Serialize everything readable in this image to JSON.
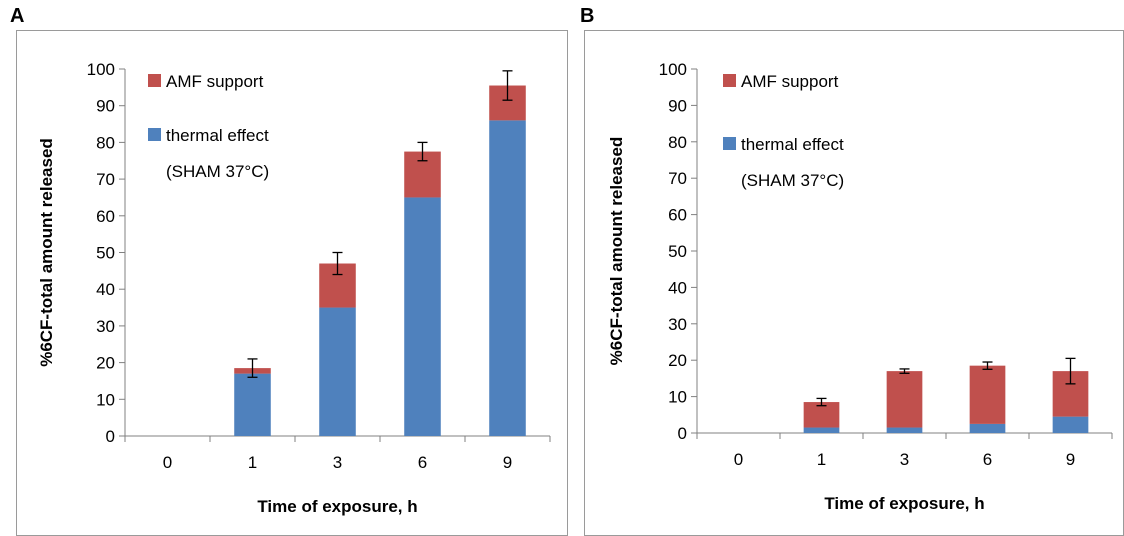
{
  "chart_data": [
    {
      "panel_label": "A",
      "type": "bar",
      "stacked": true,
      "categories": [
        "0",
        "1",
        "3",
        "6",
        "9"
      ],
      "series": [
        {
          "name": "thermal effect (SHAM 37°C)",
          "color": "#4f81bd",
          "values": [
            0,
            17,
            35,
            65,
            86
          ]
        },
        {
          "name": "AMF support",
          "color": "#c0504d",
          "values": [
            0,
            1.5,
            12,
            12.5,
            9.5
          ]
        }
      ],
      "error_bars": [
        null,
        2.5,
        3,
        2.5,
        4
      ],
      "xlabel": "Time of exposure, h",
      "ylabel": "%6CF-total amount  released",
      "ylim": [
        0,
        100
      ],
      "yticks": [
        0,
        10,
        20,
        30,
        40,
        50,
        60,
        70,
        80,
        90,
        100
      ],
      "legend_placement": "top-left",
      "grid": false,
      "legend": {
        "amf_label": "AMF support",
        "thermal_label_line1": "thermal effect",
        "thermal_label_line2": "(SHAM 37°C)"
      }
    },
    {
      "panel_label": "B",
      "type": "bar",
      "stacked": true,
      "categories": [
        "0",
        "1",
        "3",
        "6",
        "9"
      ],
      "series": [
        {
          "name": "thermal effect (SHAM 37°C)",
          "color": "#4f81bd",
          "values": [
            0,
            1.5,
            1.5,
            2.5,
            4.5
          ]
        },
        {
          "name": "AMF support",
          "color": "#c0504d",
          "values": [
            0,
            7,
            15.5,
            16,
            12.5
          ]
        }
      ],
      "error_bars": [
        null,
        1,
        0.6,
        1,
        3.5
      ],
      "xlabel": "Time of exposure, h",
      "ylabel": "%6CF-total amount  released",
      "ylim": [
        0,
        100
      ],
      "yticks": [
        0,
        10,
        20,
        30,
        40,
        50,
        60,
        70,
        80,
        90,
        100
      ],
      "legend_placement": "top-left",
      "grid": false,
      "legend": {
        "amf_label": "AMF support",
        "thermal_label_line1": "thermal effect",
        "thermal_label_line2": "(SHAM 37°C)"
      }
    }
  ]
}
